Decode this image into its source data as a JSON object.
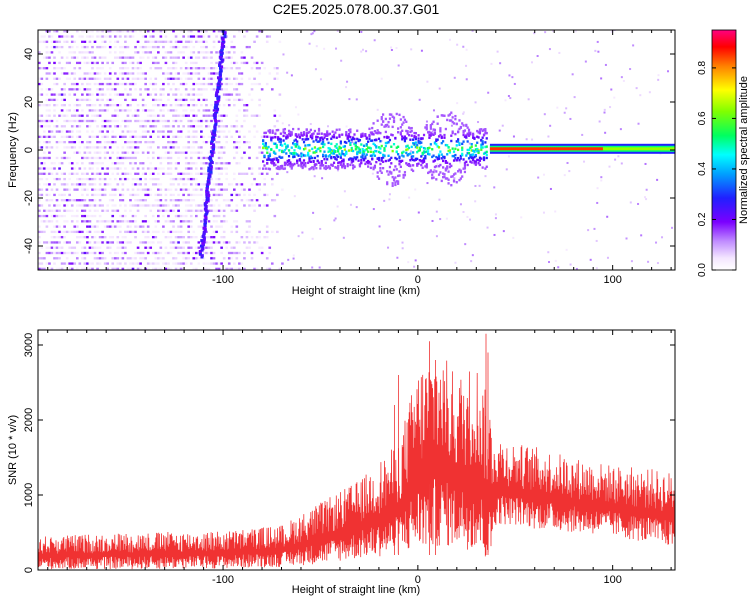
{
  "title": "C2E5.2025.078.00.37.G01",
  "chart_data": [
    {
      "type": "heatmap",
      "xlabel": "Height of straight line (km)",
      "ylabel": "Frequency (Hz)",
      "xlim": [
        -195,
        132
      ],
      "ylim": [
        -50,
        50
      ],
      "xticks": [
        -100,
        0,
        100
      ],
      "yticks": [
        -40,
        -20,
        0,
        20,
        40
      ],
      "colorbar": {
        "label": "Normalized spectral amplitude",
        "range": [
          0,
          0.95
        ],
        "ticks": [
          0.0,
          0.2,
          0.4,
          0.6,
          0.8
        ]
      },
      "features": [
        {
          "name": "noise",
          "x_range": [
            -195,
            -70
          ],
          "freq_range": [
            -50,
            50
          ],
          "amplitude": 0.1
        },
        {
          "name": "diagonal streak",
          "from": [
            -112,
            -45
          ],
          "to": [
            -100,
            50
          ],
          "amplitude": 0.2
        },
        {
          "name": "central band",
          "x_range": [
            -80,
            35
          ],
          "center_freq": 0,
          "halfwidth_hz": 6,
          "amplitude": 0.45
        },
        {
          "name": "narrow line",
          "x_range": [
            37,
            132
          ],
          "center_freq": 0.5,
          "amplitude": 0.9
        }
      ]
    },
    {
      "type": "line",
      "xlabel": "Height of straight line (km)",
      "ylabel": "SNR (10 * v/v)",
      "xlim": [
        -195,
        132
      ],
      "ylim": [
        0,
        3200
      ],
      "xticks": [
        -100,
        0,
        100
      ],
      "yticks": [
        0,
        1000,
        2000,
        3000
      ],
      "series": [
        {
          "color": "#f03232",
          "envelope": {
            "x": [
              -195,
              -150,
              -100,
              -70,
              -50,
              -30,
              -10,
              0,
              10,
              20,
              30,
              37,
              40,
              50,
              60,
              80,
              100,
              120,
              132
            ],
            "min": [
              10,
              10,
              20,
              40,
              80,
              150,
              200,
              250,
              300,
              300,
              250,
              50,
              600,
              600,
              550,
              500,
              450,
              350,
              300
            ],
            "max": [
              450,
              500,
              520,
              600,
              900,
              1200,
              1700,
              2700,
              3000,
              2600,
              2800,
              2200,
              1800,
              1700,
              1650,
              1500,
              1400,
              1350,
              1300
            ],
            "spikes": [
              [
                6,
                3050
              ],
              [
                9,
                2800
              ],
              [
                35,
                3150
              ],
              [
                36,
                2900
              ],
              [
                -10,
                2600
              ],
              [
                -12,
                2200
              ]
            ]
          }
        }
      ]
    }
  ]
}
